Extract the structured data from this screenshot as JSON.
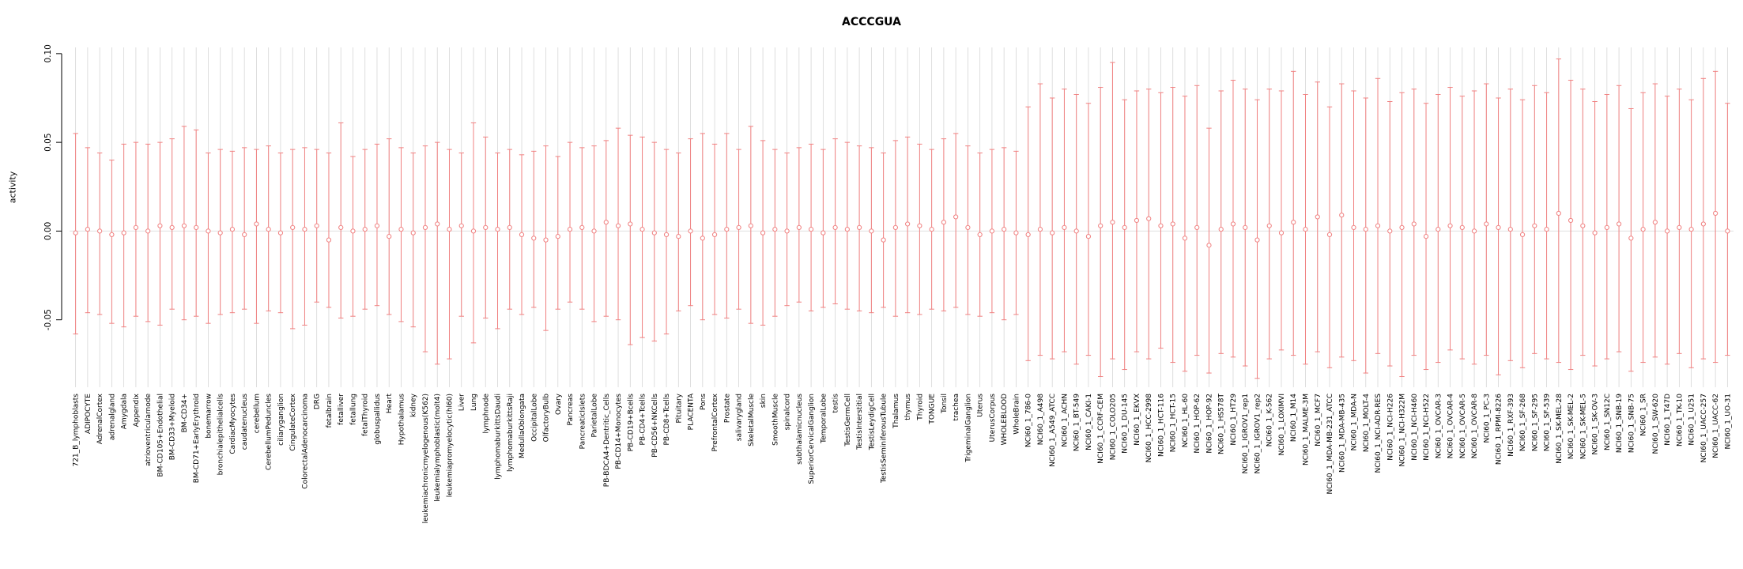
{
  "chart_data": {
    "type": "scatter",
    "subtype": "error-bar-plot",
    "title": "ACCCGUA",
    "ylabel": "activity",
    "xlabel": "",
    "ylim": [
      -0.088,
      0.1035
    ],
    "yticks": [
      -0.05,
      0,
      0.05,
      0.1
    ],
    "ytick_labels": [
      "-0.05",
      "0.00",
      "0.05",
      "0.10"
    ],
    "grid": "vertical line per category, light gray; faint horizontal line at 0",
    "legend": "none",
    "point_color": "#f08080",
    "grid_color": "#d6d6d6",
    "zero_line_color": "#e0e0e0",
    "axis_color": "#000000",
    "categories": [
      "721_B_lymphoblasts",
      "ADIPOCYTE",
      "AdrenalCortex",
      "adrenalgland",
      "Amygdala",
      "Appendix",
      "atrioventricularnode",
      "BM-CD105+Endothelial",
      "BM-CD33+Myeloid",
      "BM-CD34+",
      "BM-CD71+EarlyErythroid",
      "bonemarrow",
      "bronchialepithelialcells",
      "CardiacMyocytes",
      "caudatenucleus",
      "cerebellum",
      "CerebellumPeduncles",
      "ciliaryganglion",
      "CingulateCortex",
      "ColorectalAdenocarcinoma",
      "DRG",
      "fetalbrain",
      "fetalliver",
      "fetallung",
      "fetalThyroid",
      "globuspallidus",
      "Heart",
      "Hypothalamus",
      "kidney",
      "leukemiachronicmyelogenous(K562)",
      "leukemialymphoblastic(molt4)",
      "leukemiapromyelocytic(hl60)",
      "Liver",
      "Lung",
      "lymphnode",
      "lymphomaburkittsDaudi",
      "lymphomaburkittsRaji",
      "MedullaOblongata",
      "OccipitalLobe",
      "OlfactoryBulb",
      "Ovary",
      "Pancreas",
      "PancreaticIslets",
      "ParietalLobe",
      "PB-BDCA4+Dentritic_Cells",
      "PB-CD14+Monocytes",
      "PB-CD19+Bcells",
      "PB-CD4+Tcells",
      "PB-CD56+NKCells",
      "PB-CD8+Tcells",
      "Pituitary",
      "PLACENTA",
      "Pons",
      "PrefrontalCortex",
      "Prostate",
      "salivarygland",
      "SkeletalMuscle",
      "skin",
      "SmoothMuscle",
      "spinalcord",
      "subthalamicnucleus",
      "SuperiorCervicalGanglion",
      "TemporalLobe",
      "testis",
      "TestisGermCell",
      "TestisInterstitial",
      "TestisLeydigCell",
      "TestisSeminiferousTubule",
      "Thalamus",
      "thymus",
      "Thyroid",
      "TONGUE",
      "Tonsil",
      "trachea",
      "TrigeminalGanglion",
      "Uterus",
      "UterusCorpus",
      "WHOLEBLOOD",
      "WholeBrain",
      "NCI60_1_786-0",
      "NCI60_1_A498",
      "NCI60_1_A549_ATCC",
      "NCI60_1_ACHN",
      "NCI60_1_BT-549",
      "NCI60_1_CAKI-1",
      "NCI60_1_CCRF-CEM",
      "NCI60_1_COLO205",
      "NCI60_1_DU-145",
      "NCI60_1_EKVX",
      "NCI60_1_HCC-2998",
      "NCI60_1_HCT-116",
      "NCI60_1_HCT-15",
      "NCI60_1_HL-60",
      "NCI60_1_HOP-62",
      "NCI60_1_HOP-92",
      "NCI60_1_HS578T",
      "NCI60_1_HT29",
      "NCI60_1_IGROV1_rep1",
      "NCI60_1_IGROV1_rep2",
      "NCI60_1_K-562",
      "NCI60_1_LOXIMVI",
      "NCI60_1_M14",
      "NCI60_1_MALME-3M",
      "NCI60_1_MCF7",
      "NCI60_1_MDA-MB-231_ATCC",
      "NCI60_1_MDA-MB-435",
      "NCI60_1_MDA-N",
      "NCI60_1_MOLT-4",
      "NCI60_1_NCI-ADR-RES",
      "NCI60_1_NCI-H226",
      "NCI60_1_NCI-H322M",
      "NCI60_1_NCI-H460",
      "NCI60_1_NCI-H522",
      "NCI60_1_OVCAR-3",
      "NCI60_1_OVCAR-4",
      "NCI60_1_OVCAR-5",
      "NCI60_1_OVCAR-8",
      "NCI60_1_PC-3",
      "NCI60_1_RPMI-8226",
      "NCI60_1_RXF-393",
      "NCI60_1_SF-268",
      "NCI60_1_SF-295",
      "NCI60_1_SF-539",
      "NCI60_1_SK-MEL-28",
      "NCI60_1_SK-MEL-2",
      "NCI60_1_SK-MEL-5",
      "NCI60_1_SK-OV-3",
      "NCI60_1_SN12C",
      "NCI60_1_SNB-19",
      "NCI60_1_SNB-75",
      "NCI60_1_SR",
      "NCI60_1_SW-620",
      "NCI60_1_T47D",
      "NCI60_1_TK-10",
      "NCI60_1_U251",
      "NCI60_1_UACC-257",
      "NCI60_1_UACC-62",
      "NCI60_1_UO-31"
    ],
    "series": [
      {
        "name": "activity",
        "centers": [
          -0.001,
          0.001,
          0.0,
          -0.002,
          -0.001,
          0.002,
          0.0,
          0.003,
          0.002,
          0.003,
          0.002,
          0.0,
          -0.001,
          0.001,
          -0.002,
          0.004,
          0.001,
          -0.001,
          0.002,
          0.001,
          0.003,
          -0.005,
          0.002,
          0.0,
          0.001,
          0.003,
          -0.003,
          0.001,
          -0.001,
          0.002,
          0.004,
          0.001,
          0.003,
          0.0,
          0.002,
          0.001,
          0.002,
          -0.002,
          -0.004,
          -0.005,
          -0.003,
          0.001,
          0.002,
          0.0,
          0.005,
          0.003,
          0.004,
          0.001,
          -0.001,
          -0.002,
          -0.003,
          0.0,
          -0.004,
          -0.002,
          0.001,
          0.002,
          0.003,
          -0.001,
          0.001,
          0.0,
          0.002,
          0.001,
          -0.001,
          0.002,
          0.001,
          0.002,
          0.0,
          -0.005,
          0.002,
          0.004,
          0.003,
          0.001,
          0.005,
          0.008,
          0.002,
          -0.002,
          0.0,
          0.001,
          -0.001,
          -0.002,
          0.001,
          -0.001,
          0.002,
          0.0,
          -0.003,
          0.003,
          0.005,
          0.002,
          0.006,
          0.007,
          0.003,
          0.004,
          -0.004,
          0.002,
          -0.008,
          0.001,
          0.004,
          0.002,
          -0.005,
          0.003,
          -0.001,
          0.005,
          0.001,
          0.008,
          -0.002,
          0.009,
          0.002,
          0.001,
          0.003,
          0.0,
          0.002,
          0.004,
          -0.003,
          0.001,
          0.003,
          0.002,
          0.0,
          0.004,
          0.002,
          0.001,
          -0.002,
          0.003,
          0.001,
          0.01,
          0.006,
          0.003,
          -0.001,
          0.002,
          0.004,
          -0.004,
          0.001,
          0.005,
          0.0,
          0.002,
          0.001,
          0.004,
          0.01,
          0.0
        ],
        "upper": [
          0.055,
          0.047,
          0.044,
          0.04,
          0.049,
          0.05,
          0.049,
          0.05,
          0.052,
          0.059,
          0.057,
          0.044,
          0.046,
          0.045,
          0.047,
          0.046,
          0.048,
          0.044,
          0.046,
          0.047,
          0.046,
          0.044,
          0.061,
          0.042,
          0.046,
          0.049,
          0.052,
          0.047,
          0.044,
          0.048,
          0.05,
          0.046,
          0.044,
          0.061,
          0.053,
          0.044,
          0.046,
          0.043,
          0.045,
          0.048,
          0.042,
          0.05,
          0.047,
          0.048,
          0.051,
          0.058,
          0.054,
          0.053,
          0.05,
          0.046,
          0.044,
          0.052,
          0.055,
          0.049,
          0.055,
          0.046,
          0.059,
          0.051,
          0.046,
          0.044,
          0.047,
          0.049,
          0.046,
          0.052,
          0.05,
          0.048,
          0.047,
          0.044,
          0.051,
          0.053,
          0.049,
          0.046,
          0.052,
          0.055,
          0.048,
          0.044,
          0.046,
          0.047,
          0.045,
          0.07,
          0.083,
          0.075,
          0.08,
          0.077,
          0.072,
          0.081,
          0.095,
          0.074,
          0.079,
          0.08,
          0.078,
          0.081,
          0.076,
          0.082,
          0.058,
          0.079,
          0.085,
          0.08,
          0.074,
          0.08,
          0.079,
          0.09,
          0.077,
          0.084,
          0.07,
          0.083,
          0.079,
          0.075,
          0.086,
          0.073,
          0.078,
          0.08,
          0.072,
          0.077,
          0.081,
          0.076,
          0.079,
          0.083,
          0.075,
          0.08,
          0.074,
          0.082,
          0.078,
          0.097,
          0.085,
          0.08,
          0.073,
          0.077,
          0.082,
          0.069,
          0.078,
          0.083,
          0.076,
          0.08,
          0.074,
          0.086,
          0.09,
          0.072
        ],
        "lower": [
          -0.058,
          -0.046,
          -0.047,
          -0.052,
          -0.054,
          -0.048,
          -0.051,
          -0.053,
          -0.044,
          -0.05,
          -0.048,
          -0.052,
          -0.047,
          -0.046,
          -0.044,
          -0.052,
          -0.045,
          -0.046,
          -0.055,
          -0.053,
          -0.04,
          -0.043,
          -0.049,
          -0.048,
          -0.044,
          -0.042,
          -0.047,
          -0.051,
          -0.054,
          -0.068,
          -0.075,
          -0.072,
          -0.048,
          -0.063,
          -0.049,
          -0.055,
          -0.044,
          -0.047,
          -0.043,
          -0.056,
          -0.044,
          -0.04,
          -0.044,
          -0.051,
          -0.048,
          -0.05,
          -0.064,
          -0.06,
          -0.062,
          -0.058,
          -0.045,
          -0.042,
          -0.05,
          -0.047,
          -0.049,
          -0.044,
          -0.052,
          -0.053,
          -0.048,
          -0.042,
          -0.04,
          -0.045,
          -0.043,
          -0.041,
          -0.044,
          -0.045,
          -0.046,
          -0.043,
          -0.048,
          -0.046,
          -0.047,
          -0.044,
          -0.045,
          -0.043,
          -0.047,
          -0.048,
          -0.046,
          -0.05,
          -0.047,
          -0.073,
          -0.07,
          -0.072,
          -0.068,
          -0.075,
          -0.07,
          -0.082,
          -0.072,
          -0.078,
          -0.068,
          -0.072,
          -0.066,
          -0.074,
          -0.079,
          -0.07,
          -0.08,
          -0.069,
          -0.071,
          -0.076,
          -0.083,
          -0.072,
          -0.067,
          -0.07,
          -0.075,
          -0.068,
          -0.077,
          -0.071,
          -0.073,
          -0.08,
          -0.069,
          -0.076,
          -0.082,
          -0.07,
          -0.078,
          -0.074,
          -0.067,
          -0.072,
          -0.075,
          -0.07,
          -0.081,
          -0.073,
          -0.077,
          -0.069,
          -0.072,
          -0.074,
          -0.078,
          -0.07,
          -0.076,
          -0.072,
          -0.068,
          -0.079,
          -0.074,
          -0.071,
          -0.075,
          -0.069,
          -0.077,
          -0.072,
          -0.074,
          -0.07
        ]
      }
    ]
  }
}
